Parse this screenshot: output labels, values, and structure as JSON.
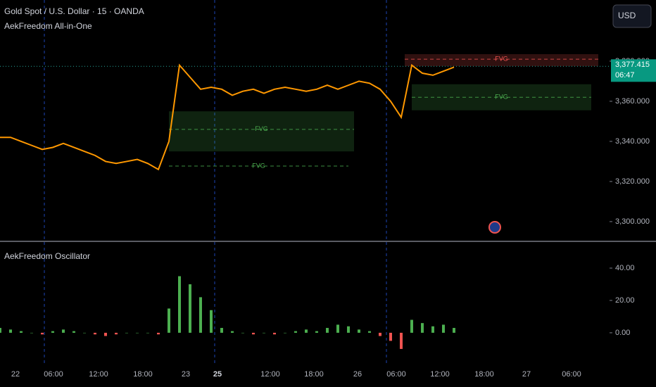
{
  "chart_data": [
    {
      "type": "line",
      "title": "Gold Spot / U.S. Dollar · 15 · OANDA",
      "subtitle": "AekFreedom All-in-One",
      "color": "#ff9800",
      "values": [
        3342,
        3342,
        3340,
        3338,
        3336,
        3337,
        3339,
        3337,
        3335,
        3333,
        3330,
        3329,
        3330,
        3331,
        3329,
        3326,
        3340,
        3378,
        3372,
        3366,
        3367,
        3366,
        3363,
        3365,
        3366,
        3364,
        3366,
        3367,
        3366,
        3365,
        3366,
        3368,
        3366,
        3368,
        3370,
        3369,
        3366,
        3360,
        3352,
        3378,
        3374,
        3373,
        3375,
        3377
      ],
      "ylim": [
        3290.5,
        3410.5
      ],
      "yticks": [
        {
          "value": 3300,
          "label": "3,300.000"
        },
        {
          "value": 3320,
          "label": "3,320.000"
        },
        {
          "value": 3340,
          "label": "3,340.000"
        },
        {
          "value": 3360,
          "label": "3,360.000"
        },
        {
          "value": 3380,
          "label": "3,380.000"
        }
      ],
      "last_price": {
        "value": 3377.415,
        "label": "3,377.415"
      },
      "countdown": "06:47",
      "zones": [
        {
          "label": "FVG",
          "low": 3335,
          "high": 3355,
          "mid": 3346,
          "color": "#4caf50"
        },
        {
          "label": "FVG",
          "low": 3327.7,
          "high": 3327.7,
          "mid": 3327.7,
          "color": "#4caf50"
        },
        {
          "label": "FVG",
          "low": 3377.5,
          "high": 3383.5,
          "mid": 3381,
          "color": "#ef5350"
        },
        {
          "label": "FVG",
          "low": 3355.5,
          "high": 3368.5,
          "mid": 3362,
          "color": "#4caf50"
        }
      ]
    },
    {
      "type": "bar",
      "title": "AekFreedom Oscillator",
      "up_color": "#4caf50",
      "down_color": "#ef5350",
      "values": [
        3,
        2,
        1,
        0,
        -1,
        1,
        2,
        1,
        0,
        -1,
        -2,
        -1,
        0,
        0,
        0,
        -1,
        15,
        35,
        30,
        22,
        14,
        3,
        1,
        0,
        -1,
        0,
        -1,
        0,
        1,
        2,
        1,
        3,
        5,
        4,
        2,
        1,
        -2,
        -5,
        -10,
        8,
        6,
        4,
        5,
        3
      ],
      "ylim": [
        -17,
        53.5
      ],
      "yticks": [
        {
          "value": 0,
          "label": "0.00"
        },
        {
          "value": 20,
          "label": "20.00"
        },
        {
          "value": 40,
          "label": "40.00"
        }
      ]
    }
  ],
  "time_axis": [
    "22",
    "06:00",
    "12:00",
    "18:00",
    "23",
    "25",
    "12:00",
    "18:00",
    "26",
    "06:00",
    "12:00",
    "18:00",
    "27",
    "06:00"
  ],
  "currency": "USD"
}
